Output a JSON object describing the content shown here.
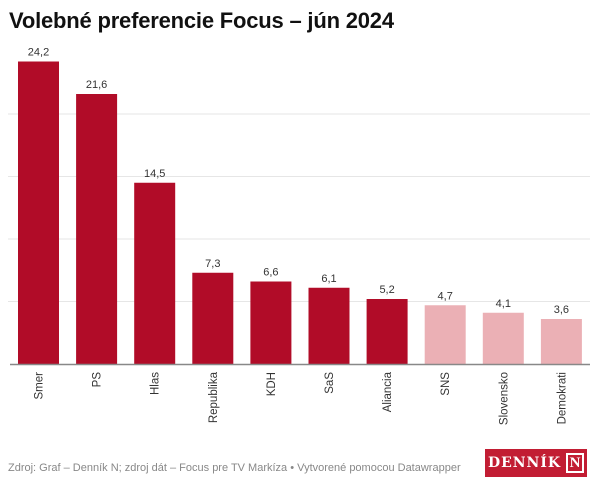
{
  "title": "Volebné preferencie Focus – jún 2024",
  "source": "Zdroj: Graf – Denník N; zdroj dát – Focus pre TV Markíza • Vytvorené pomocou Datawrapper",
  "logo": {
    "text": "DENNÍK",
    "mark": "N"
  },
  "colors": {
    "above_threshold": "#b10c28",
    "below_threshold": "#ebb0b5",
    "logo_bg": "#c21d33"
  },
  "chart_data": {
    "type": "bar",
    "title": "Volebné preferencie Focus – jún 2024",
    "xlabel": "",
    "ylabel": "",
    "categories": [
      "Smer",
      "PS",
      "Hlas",
      "Republika",
      "KDH",
      "SaS",
      "Aliancia",
      "SNS",
      "Slovensko",
      "Demokrati"
    ],
    "values": [
      24.2,
      21.6,
      14.5,
      7.3,
      6.6,
      6.1,
      5.2,
      4.7,
      4.1,
      3.6
    ],
    "value_labels": [
      "24,2",
      "21,6",
      "14,5",
      "7,3",
      "6,6",
      "6,1",
      "5,2",
      "4,7",
      "4,1",
      "3,6"
    ],
    "highlight": [
      true,
      true,
      true,
      true,
      true,
      true,
      true,
      false,
      false,
      false
    ],
    "ylim": [
      0,
      25
    ],
    "gridlines": [
      5,
      10,
      15,
      20
    ],
    "grid": true,
    "legend": "none"
  }
}
